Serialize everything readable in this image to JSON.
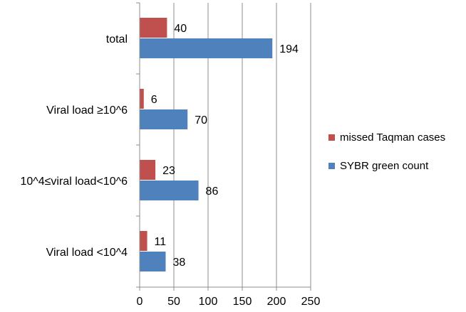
{
  "chart_data": {
    "type": "bar",
    "orientation": "horizontal",
    "categories": [
      "total",
      "Viral load ≥10^6",
      "10^4≤viral load<10^6",
      "Viral load <10^4"
    ],
    "series": [
      {
        "name": "missed Taqman cases",
        "color": "#c0504d",
        "values": [
          40,
          6,
          23,
          11
        ]
      },
      {
        "name": "SYBR green count",
        "color": "#4f81bd",
        "values": [
          194,
          70,
          86,
          38
        ]
      }
    ],
    "xlim": [
      0,
      250
    ],
    "xticks": [
      0,
      50,
      100,
      150,
      200,
      250
    ],
    "grid": true,
    "legend_position": "right",
    "title": "",
    "xlabel": "",
    "ylabel": ""
  }
}
